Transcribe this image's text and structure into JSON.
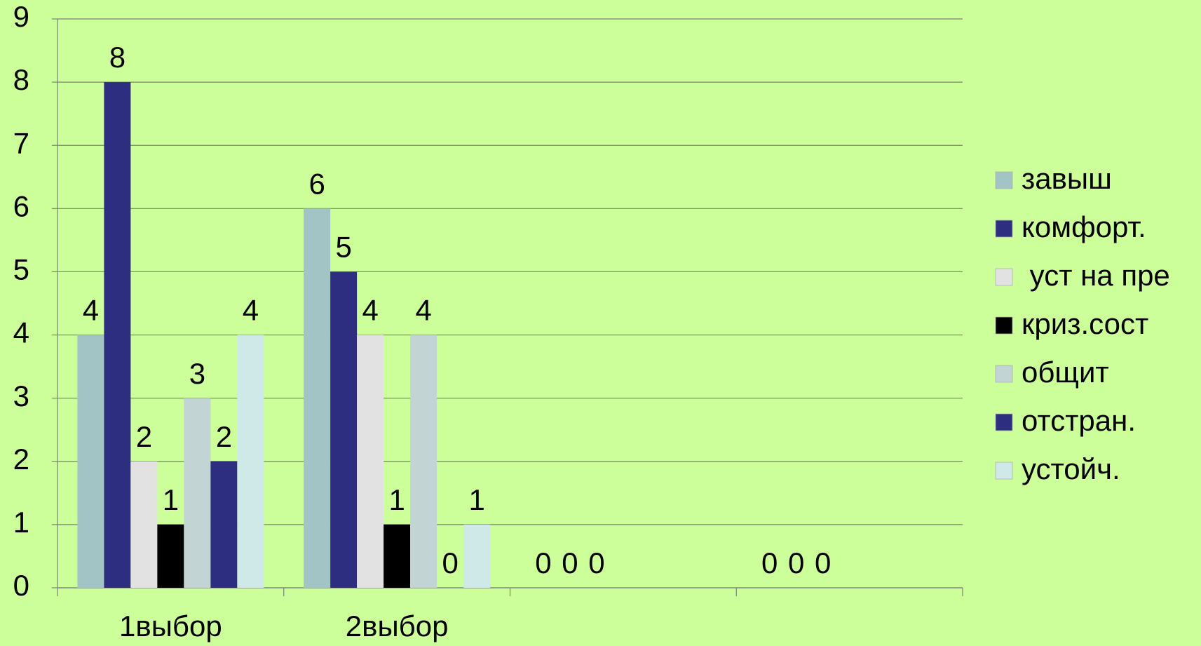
{
  "chart_data": {
    "type": "bar",
    "categories": [
      "1выбор",
      "2выбор",
      null,
      null
    ],
    "series": [
      {
        "name": "завыш",
        "color": "#a3c4c4",
        "values": [
          4,
          6,
          0,
          0
        ]
      },
      {
        "name": "комфорт.",
        "color": "#2e2e80",
        "values": [
          8,
          5,
          0,
          0
        ]
      },
      {
        "name": " уст на пре",
        "color": "#e2e2e2",
        "values": [
          2,
          4,
          0,
          0
        ]
      },
      {
        "name": "криз.сост",
        "color": "#000000",
        "values": [
          1,
          1,
          null,
          null
        ]
      },
      {
        "name": "общит",
        "color": "#c2d4d4",
        "values": [
          3,
          4,
          null,
          null
        ]
      },
      {
        "name": "отстран.",
        "color": "#2e2e80",
        "values": [
          2,
          0,
          null,
          null
        ]
      },
      {
        "name": "устойч.",
        "color": "#cfe8e8",
        "values": [
          4,
          1,
          null,
          null
        ]
      }
    ],
    "ylim": [
      0,
      9
    ],
    "yticks": [
      0,
      1,
      2,
      3,
      4,
      5,
      6,
      7,
      8,
      9
    ],
    "grid": true,
    "legend": "right"
  }
}
